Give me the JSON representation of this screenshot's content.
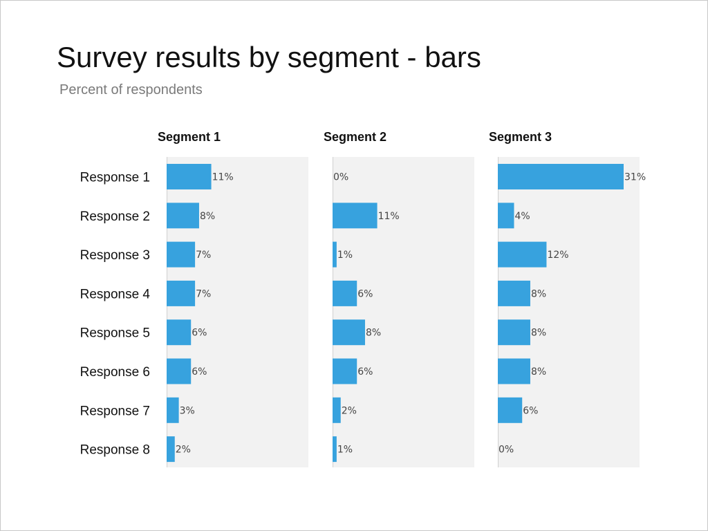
{
  "title": "Survey results by segment - bars",
  "subtitle": "Percent of respondents",
  "chart_data": {
    "type": "bar",
    "orientation": "horizontal",
    "value_suffix": "%",
    "xlim": [
      0,
      35
    ],
    "grid": false,
    "categories": [
      "Response 1",
      "Response 2",
      "Response 3",
      "Response 4",
      "Response 5",
      "Response 6",
      "Response 7",
      "Response 8"
    ],
    "series": [
      {
        "name": "Segment 1",
        "values": [
          11,
          8,
          7,
          7,
          6,
          6,
          3,
          2
        ]
      },
      {
        "name": "Segment 2",
        "values": [
          0,
          11,
          1,
          6,
          8,
          6,
          2,
          1
        ]
      },
      {
        "name": "Segment 3",
        "values": [
          31,
          4,
          12,
          8,
          8,
          8,
          6,
          0
        ]
      }
    ],
    "colors": {
      "bar": "#37a2de",
      "panel": "#f2f2f2"
    }
  }
}
